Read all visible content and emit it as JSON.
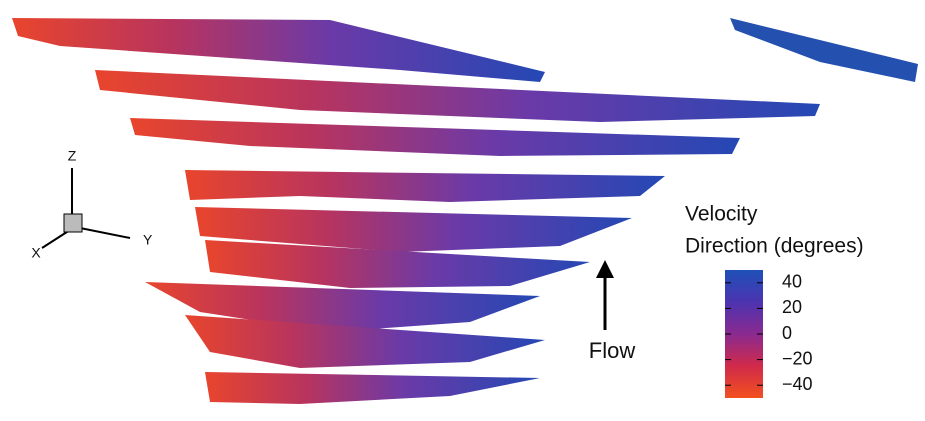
{
  "axes": {
    "z": "Z",
    "y": "Y",
    "x": "X"
  },
  "annotation": "Flow",
  "colorbar": {
    "title": [
      "Velocity",
      "Direction (degrees)"
    ],
    "lim": [
      -50,
      50
    ],
    "ticks": [
      40,
      20,
      0,
      {
        "value": -20,
        "label": "−20"
      },
      {
        "value": -40,
        "label": "−40"
      }
    ]
  }
}
